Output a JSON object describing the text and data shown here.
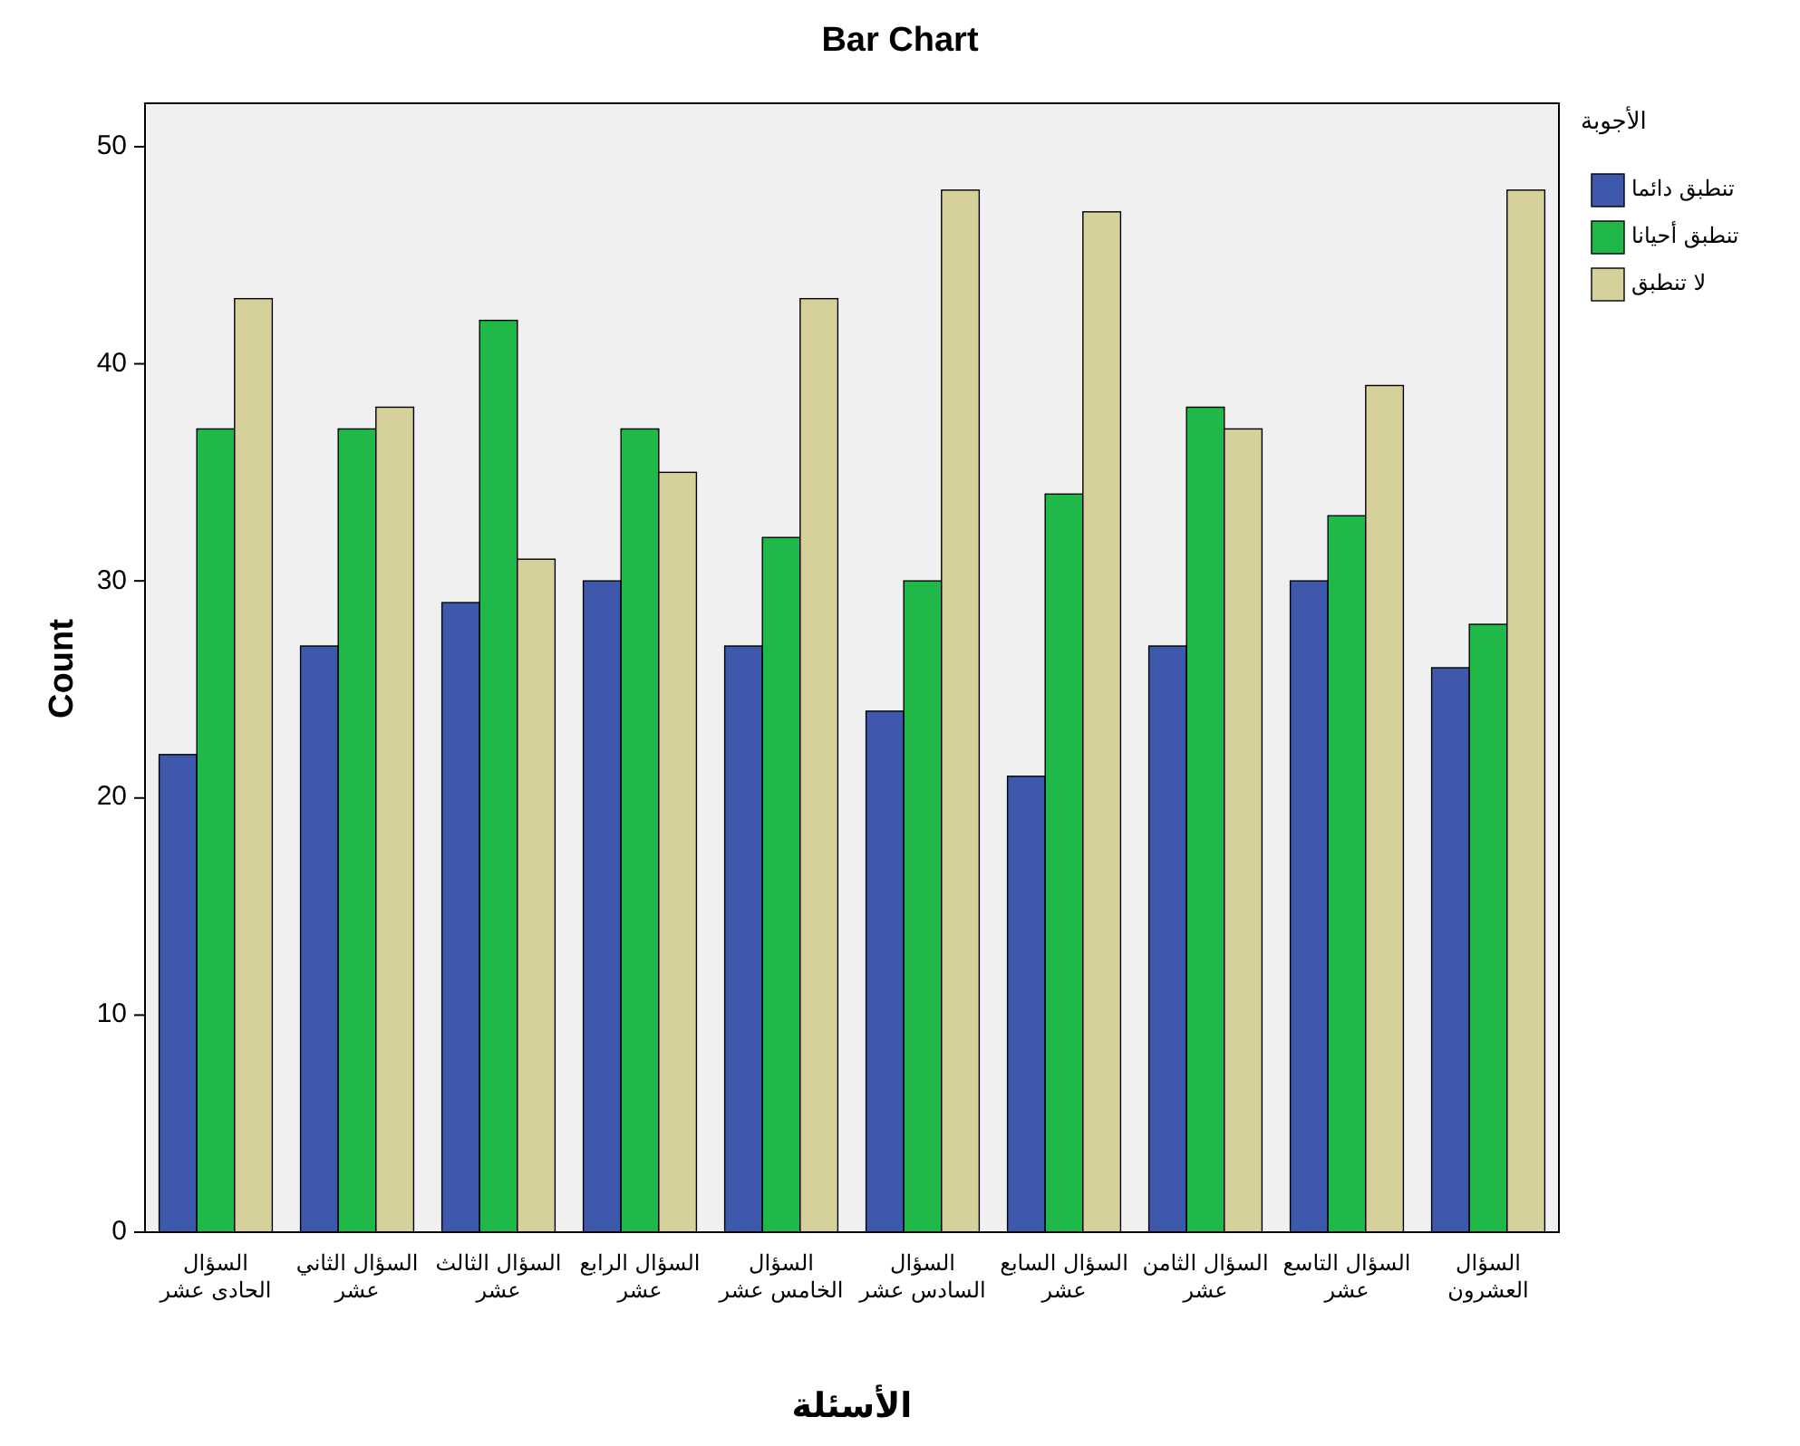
{
  "chart_data": {
    "type": "bar",
    "title": "Bar Chart",
    "xlabel": "الأسئلة",
    "ylabel": "Count",
    "legend_title": "الأجوبة",
    "categories": [
      "السؤال الحادى عشر",
      "السؤال الثاني عشر",
      "السؤال الثالث عشر",
      "السؤال الرابع عشر",
      "السؤال الخامس عشر",
      "السؤال السادس عشر",
      "السؤال السابع عشر",
      "السؤال الثامن عشر",
      "السؤال التاسع عشر",
      "السؤال العشرون"
    ],
    "series": [
      {
        "name": "تنطبق دائما",
        "color": "#3e58ac",
        "values": [
          22,
          27,
          29,
          30,
          27,
          24,
          21,
          27,
          30,
          26
        ]
      },
      {
        "name": "تنطبق أحيانا",
        "color": "#21b84a",
        "values": [
          37,
          37,
          42,
          37,
          32,
          30,
          34,
          38,
          33,
          28
        ]
      },
      {
        "name": "لا تنطبق",
        "color": "#d6d09a",
        "values": [
          43,
          38,
          31,
          35,
          43,
          48,
          47,
          37,
          39,
          48
        ]
      }
    ],
    "ylim": [
      0,
      52
    ],
    "yticks": [
      0,
      10,
      20,
      30,
      40,
      50
    ],
    "grid": false,
    "legend": "top right"
  }
}
